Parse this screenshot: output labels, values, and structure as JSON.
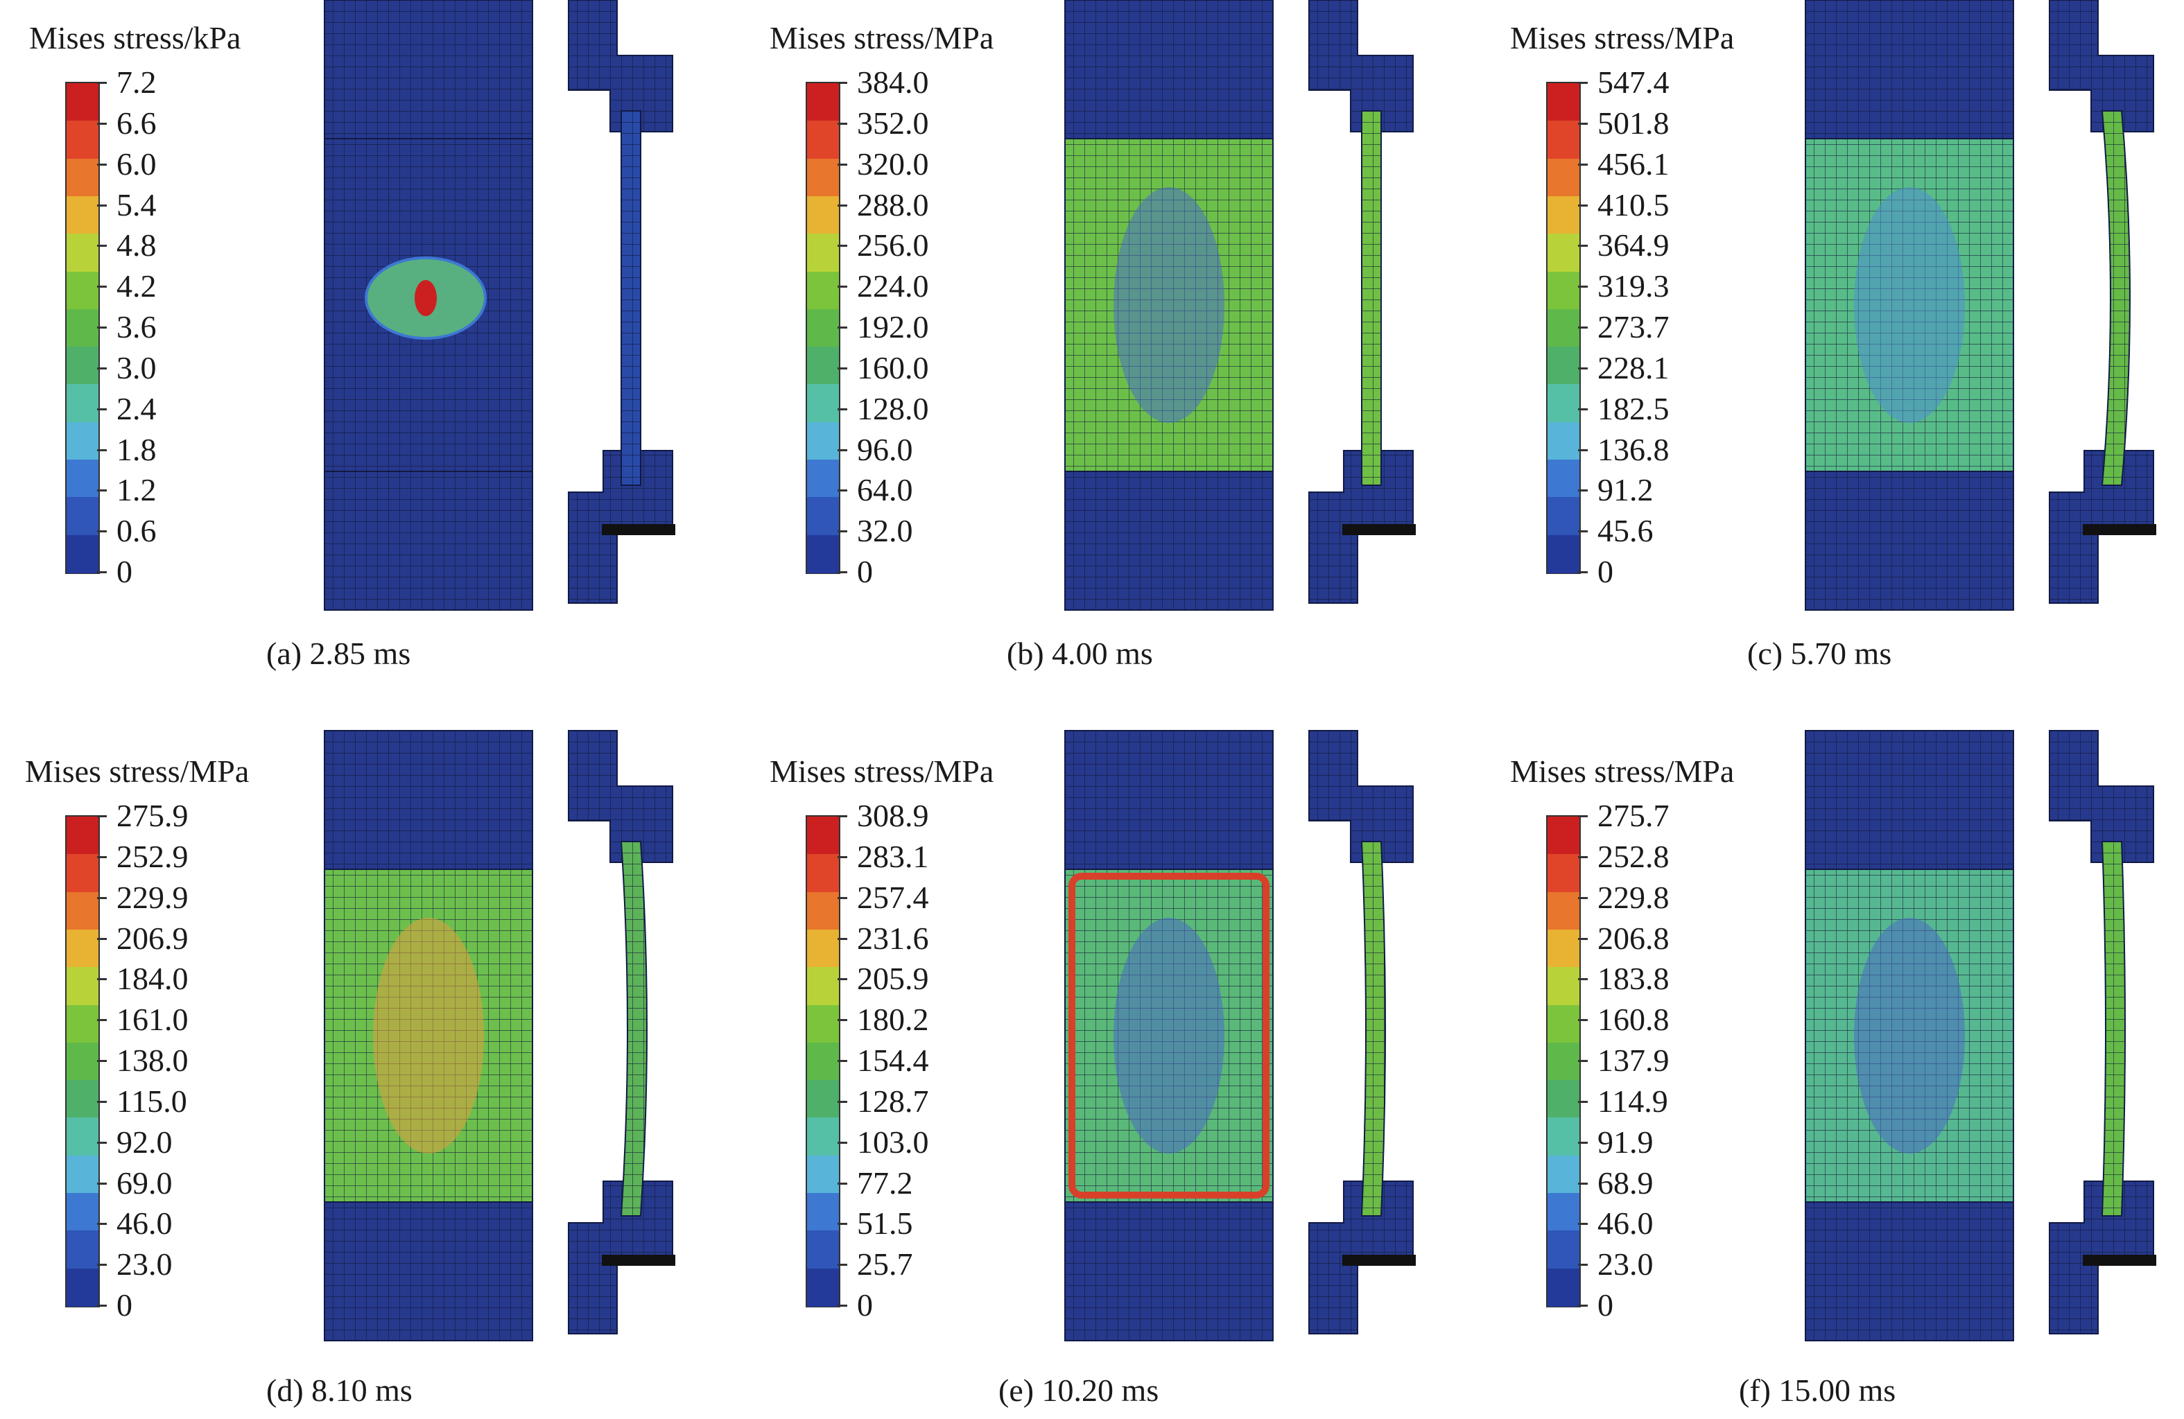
{
  "colormap": [
    "#243a9a",
    "#2f56b8",
    "#3d78d2",
    "#58b4d8",
    "#56c0a6",
    "#4fb06a",
    "#5fb94a",
    "#7cc43c",
    "#b8d33a",
    "#e8b232",
    "#e8762c",
    "#e0452a",
    "#cc2020"
  ],
  "panels": [
    {
      "legend_title": "Mises stress/kPa",
      "ticks": [
        "7.2",
        "6.6",
        "6.0",
        "5.4",
        "4.8",
        "4.2",
        "3.6",
        "3.0",
        "2.4",
        "1.8",
        "1.2",
        "0.6",
        "0"
      ],
      "caption": "(a) 2.85 ms",
      "specimen_color": "#2a3f96",
      "specimen_pattern": "#2e55b0",
      "rod_color": "#2a4aa8",
      "bend": 0,
      "hotspot": true
    },
    {
      "legend_title": "Mises stress/MPa",
      "ticks": [
        "384.0",
        "352.0",
        "320.0",
        "288.0",
        "256.0",
        "224.0",
        "192.0",
        "160.0",
        "128.0",
        "96.0",
        "64.0",
        "32.0",
        "0"
      ],
      "caption": "(b) 4.00 ms",
      "specimen_color": "#6cc04a",
      "specimen_pattern": "#4a6fc4",
      "rod_color": "#6fc044",
      "bend": 0,
      "hotspot": false
    },
    {
      "legend_title": "Mises stress/MPa",
      "ticks": [
        "547.4",
        "501.8",
        "456.1",
        "410.5",
        "364.9",
        "319.3",
        "273.7",
        "228.1",
        "182.5",
        "136.8",
        "91.2",
        "45.6",
        "0"
      ],
      "caption": "(c) 5.70 ms",
      "specimen_color": "#58bc88",
      "specimen_pattern": "#4f8fd0",
      "rod_color": "#66bb48",
      "bend": 24,
      "hotspot": false
    },
    {
      "legend_title": "Mises stress/MPa",
      "ticks": [
        "275.9",
        "252.9",
        "229.9",
        "206.9",
        "184.0",
        "161.0",
        "138.0",
        "115.0",
        "92.0",
        "69.0",
        "46.0",
        "23.0",
        "0"
      ],
      "caption": "(d) 8.10 ms",
      "specimen_color": "#6cbf4c",
      "specimen_pattern": "#e0a040",
      "rod_color": "#5db358",
      "bend": 18,
      "hotspot": false
    },
    {
      "legend_title": "Mises stress/MPa",
      "ticks": [
        "308.9",
        "283.1",
        "257.4",
        "231.6",
        "205.9",
        "180.2",
        "154.4",
        "128.7",
        "103.0",
        "77.2",
        "51.5",
        "25.7",
        "0"
      ],
      "caption": "(e) 10.20 ms",
      "specimen_color": "#5ab978",
      "specimen_pattern": "#4a6cc4",
      "rod_color": "#6cbc46",
      "bend": 12,
      "hotspot": false
    },
    {
      "legend_title": "Mises stress/MPa",
      "ticks": [
        "275.7",
        "252.8",
        "229.8",
        "206.8",
        "183.8",
        "160.8",
        "137.9",
        "114.9",
        "91.9",
        "68.9",
        "46.0",
        "23.0",
        "0"
      ],
      "caption": "(f) 15.00 ms",
      "specimen_color": "#56b890",
      "specimen_pattern": "#4a6cc4",
      "rod_color": "#66bb48",
      "bend": 10,
      "hotspot": false
    }
  ]
}
